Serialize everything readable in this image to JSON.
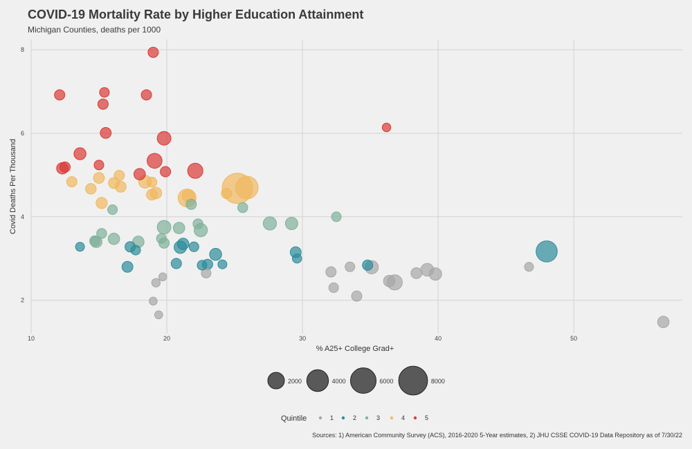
{
  "chart_data": {
    "type": "scatter",
    "title": "COVID-19 Mortality Rate by Higher Education Attainment",
    "subtitle": "Michigan Counties, deaths per 1000",
    "xlabel": "% A25+ College Grad+",
    "ylabel": "Covid Deaths Per Thousand",
    "xlim": [
      10,
      58
    ],
    "ylim": [
      1.2,
      8.25
    ],
    "x_ticks": [
      10,
      20,
      30,
      40,
      50
    ],
    "y_ticks": [
      2,
      4,
      6,
      8
    ],
    "grid": true,
    "size_legend": {
      "values": [
        2000,
        4000,
        6000,
        8000
      ],
      "labels": [
        "2000",
        "4000",
        "6000",
        "8000"
      ]
    },
    "color_legend": {
      "title": "Quintile",
      "entries": [
        {
          "label": "1",
          "color": "#a6a6a6"
        },
        {
          "label": "2",
          "color": "#2e8b9a"
        },
        {
          "label": "3",
          "color": "#7fb19a"
        },
        {
          "label": "4",
          "color": "#f0b860"
        },
        {
          "label": "5",
          "color": "#d93a36"
        }
      ]
    },
    "caption": "Sources: 1) American Community Survey (ACS), 2016-2020 5-Year estimates, 2) JHU CSSE COVID-19 Data Repository as of 7/30/22",
    "series": [
      {
        "quintile": 1,
        "color": "#a6a6a6",
        "points": [
          {
            "x": 56.6,
            "y": 1.48,
            "size": 700
          },
          {
            "x": 46.7,
            "y": 2.8,
            "size": 300
          },
          {
            "x": 39.8,
            "y": 2.63,
            "size": 900
          },
          {
            "x": 39.2,
            "y": 2.73,
            "size": 1000
          },
          {
            "x": 38.4,
            "y": 2.65,
            "size": 600
          },
          {
            "x": 36.8,
            "y": 2.43,
            "size": 1600
          },
          {
            "x": 36.4,
            "y": 2.46,
            "size": 700
          },
          {
            "x": 35.1,
            "y": 2.79,
            "size": 1100
          },
          {
            "x": 33.5,
            "y": 2.8,
            "size": 400
          },
          {
            "x": 34.0,
            "y": 2.1,
            "size": 500
          },
          {
            "x": 32.3,
            "y": 2.3,
            "size": 400
          },
          {
            "x": 32.1,
            "y": 2.68,
            "size": 500
          },
          {
            "x": 22.9,
            "y": 2.65,
            "size": 400
          },
          {
            "x": 19.7,
            "y": 2.56,
            "size": 200
          },
          {
            "x": 19.2,
            "y": 2.42,
            "size": 250
          },
          {
            "x": 19.0,
            "y": 1.98,
            "size": 200
          },
          {
            "x": 19.4,
            "y": 1.65,
            "size": 200
          }
        ]
      },
      {
        "quintile": 2,
        "color": "#2e8b9a",
        "points": [
          {
            "x": 48.0,
            "y": 3.17,
            "size": 3800
          },
          {
            "x": 34.8,
            "y": 2.84,
            "size": 500
          },
          {
            "x": 29.6,
            "y": 3.0,
            "size": 350
          },
          {
            "x": 29.5,
            "y": 3.15,
            "size": 600
          },
          {
            "x": 24.1,
            "y": 2.86,
            "size": 300
          },
          {
            "x": 23.6,
            "y": 3.1,
            "size": 800
          },
          {
            "x": 23.0,
            "y": 2.86,
            "size": 500
          },
          {
            "x": 22.6,
            "y": 2.84,
            "size": 400
          },
          {
            "x": 22.0,
            "y": 3.28,
            "size": 400
          },
          {
            "x": 21.0,
            "y": 3.27,
            "size": 900
          },
          {
            "x": 21.2,
            "y": 3.35,
            "size": 700
          },
          {
            "x": 20.7,
            "y": 2.88,
            "size": 500
          },
          {
            "x": 17.7,
            "y": 3.2,
            "size": 400
          },
          {
            "x": 17.3,
            "y": 3.28,
            "size": 500
          },
          {
            "x": 17.1,
            "y": 2.8,
            "size": 600
          },
          {
            "x": 13.6,
            "y": 3.28,
            "size": 300
          }
        ]
      },
      {
        "quintile": 3,
        "color": "#7fb19a",
        "points": [
          {
            "x": 32.5,
            "y": 4.0,
            "size": 400
          },
          {
            "x": 29.2,
            "y": 3.84,
            "size": 900
          },
          {
            "x": 27.6,
            "y": 3.84,
            "size": 1100
          },
          {
            "x": 25.6,
            "y": 4.22,
            "size": 450
          },
          {
            "x": 22.5,
            "y": 3.68,
            "size": 1100
          },
          {
            "x": 22.3,
            "y": 3.83,
            "size": 450
          },
          {
            "x": 21.8,
            "y": 4.3,
            "size": 500
          },
          {
            "x": 20.9,
            "y": 3.73,
            "size": 700
          },
          {
            "x": 19.8,
            "y": 3.75,
            "size": 1200
          },
          {
            "x": 19.8,
            "y": 3.37,
            "size": 500
          },
          {
            "x": 19.6,
            "y": 3.48,
            "size": 400
          },
          {
            "x": 17.9,
            "y": 3.4,
            "size": 700
          },
          {
            "x": 16.1,
            "y": 3.47,
            "size": 700
          },
          {
            "x": 16.0,
            "y": 4.17,
            "size": 400
          },
          {
            "x": 15.2,
            "y": 3.6,
            "size": 450
          },
          {
            "x": 14.8,
            "y": 3.4,
            "size": 700
          },
          {
            "x": 14.7,
            "y": 3.42,
            "size": 500
          }
        ]
      },
      {
        "quintile": 4,
        "color": "#f0b860",
        "points": [
          {
            "x": 25.2,
            "y": 4.68,
            "size": 9000
          },
          {
            "x": 25.9,
            "y": 4.7,
            "size": 4500
          },
          {
            "x": 24.4,
            "y": 4.56,
            "size": 500
          },
          {
            "x": 21.5,
            "y": 4.45,
            "size": 2500
          },
          {
            "x": 21.6,
            "y": 4.5,
            "size": 900
          },
          {
            "x": 19.2,
            "y": 4.57,
            "size": 700
          },
          {
            "x": 18.9,
            "y": 4.53,
            "size": 600
          },
          {
            "x": 18.9,
            "y": 4.83,
            "size": 450
          },
          {
            "x": 18.4,
            "y": 4.84,
            "size": 1000
          },
          {
            "x": 16.6,
            "y": 4.72,
            "size": 600
          },
          {
            "x": 16.1,
            "y": 4.81,
            "size": 600
          },
          {
            "x": 16.5,
            "y": 4.99,
            "size": 500
          },
          {
            "x": 15.2,
            "y": 4.33,
            "size": 650
          },
          {
            "x": 15.0,
            "y": 4.93,
            "size": 600
          },
          {
            "x": 14.4,
            "y": 4.67,
            "size": 550
          },
          {
            "x": 13.0,
            "y": 4.84,
            "size": 500
          }
        ]
      },
      {
        "quintile": 5,
        "color": "#d93a36",
        "points": [
          {
            "x": 36.2,
            "y": 6.14,
            "size": 250
          },
          {
            "x": 22.1,
            "y": 5.1,
            "size": 1600
          },
          {
            "x": 19.9,
            "y": 5.08,
            "size": 500
          },
          {
            "x": 19.1,
            "y": 5.34,
            "size": 1500
          },
          {
            "x": 18.0,
            "y": 5.02,
            "size": 700
          },
          {
            "x": 19.8,
            "y": 5.88,
            "size": 1200
          },
          {
            "x": 15.5,
            "y": 6.01,
            "size": 600
          },
          {
            "x": 13.6,
            "y": 5.51,
            "size": 800
          },
          {
            "x": 15.0,
            "y": 5.24,
            "size": 400
          },
          {
            "x": 12.3,
            "y": 5.16,
            "size": 700
          },
          {
            "x": 12.5,
            "y": 5.19,
            "size": 500
          },
          {
            "x": 12.1,
            "y": 6.92,
            "size": 500
          },
          {
            "x": 15.4,
            "y": 6.98,
            "size": 400
          },
          {
            "x": 15.3,
            "y": 6.7,
            "size": 500
          },
          {
            "x": 18.5,
            "y": 6.92,
            "size": 500
          },
          {
            "x": 19.0,
            "y": 7.94,
            "size": 500
          }
        ]
      }
    ]
  }
}
